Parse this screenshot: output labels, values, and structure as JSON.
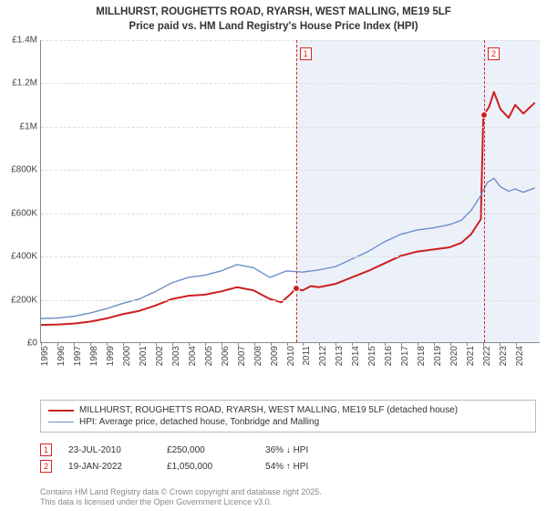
{
  "title_line1": "MILLHURST, ROUGHETTS ROAD, RYARSH, WEST MALLING, ME19 5LF",
  "title_line2": "Price paid vs. HM Land Registry's House Price Index (HPI)",
  "chart": {
    "type": "line",
    "background_color": "#ffffff",
    "shade_color": "#eaf0f8",
    "grid_color": "#dddddd",
    "axis_color": "#888888",
    "x_start": 1995,
    "x_end": 2025.5,
    "xticks": [
      1995,
      1996,
      1997,
      1998,
      1999,
      2000,
      2001,
      2002,
      2003,
      2004,
      2005,
      2006,
      2007,
      2008,
      2009,
      2010,
      2011,
      2012,
      2013,
      2014,
      2015,
      2016,
      2017,
      2018,
      2019,
      2020,
      2021,
      2022,
      2023,
      2024
    ],
    "y_min": 0,
    "y_max": 1400000,
    "yticks": [
      0,
      200000,
      400000,
      600000,
      800000,
      1000000,
      1200000,
      1400000
    ],
    "yticklabels": [
      "£0",
      "£200K",
      "£400K",
      "£600K",
      "£800K",
      "£1M",
      "£1.2M",
      "£1.4M"
    ],
    "xtick_label_fontsize": 10,
    "ytick_label_fontsize": 10,
    "xtick_rotation_deg": -90,
    "shade_from_year": 2010.56,
    "series": [
      {
        "key": "property",
        "color": "#cc1f1f",
        "width": 2,
        "points": [
          [
            1995,
            80000
          ],
          [
            1996,
            82000
          ],
          [
            1997,
            86000
          ],
          [
            1998,
            95000
          ],
          [
            1999,
            110000
          ],
          [
            2000,
            130000
          ],
          [
            2001,
            145000
          ],
          [
            2002,
            170000
          ],
          [
            2003,
            200000
          ],
          [
            2004,
            215000
          ],
          [
            2005,
            220000
          ],
          [
            2006,
            235000
          ],
          [
            2007,
            255000
          ],
          [
            2008,
            240000
          ],
          [
            2009,
            200000
          ],
          [
            2009.7,
            185000
          ],
          [
            2010.3,
            225000
          ],
          [
            2010.56,
            250000
          ],
          [
            2011,
            240000
          ],
          [
            2011.5,
            260000
          ],
          [
            2012,
            255000
          ],
          [
            2013,
            270000
          ],
          [
            2014,
            300000
          ],
          [
            2015,
            330000
          ],
          [
            2016,
            365000
          ],
          [
            2017,
            400000
          ],
          [
            2018,
            420000
          ],
          [
            2019,
            430000
          ],
          [
            2020,
            440000
          ],
          [
            2020.7,
            460000
          ],
          [
            2021.3,
            500000
          ],
          [
            2021.9,
            570000
          ],
          [
            2022.05,
            1050000
          ],
          [
            2022.4,
            1090000
          ],
          [
            2022.7,
            1160000
          ],
          [
            2023.1,
            1080000
          ],
          [
            2023.6,
            1040000
          ],
          [
            2024.0,
            1100000
          ],
          [
            2024.5,
            1060000
          ],
          [
            2025.2,
            1110000
          ]
        ]
      },
      {
        "key": "hpi",
        "color": "#6d8fc9",
        "width": 1.4,
        "points": [
          [
            1995,
            110000
          ],
          [
            1996,
            112000
          ],
          [
            1997,
            120000
          ],
          [
            1998,
            135000
          ],
          [
            1999,
            155000
          ],
          [
            2000,
            180000
          ],
          [
            2001,
            200000
          ],
          [
            2002,
            235000
          ],
          [
            2003,
            275000
          ],
          [
            2004,
            300000
          ],
          [
            2005,
            310000
          ],
          [
            2006,
            330000
          ],
          [
            2007,
            360000
          ],
          [
            2008,
            345000
          ],
          [
            2009,
            300000
          ],
          [
            2010,
            330000
          ],
          [
            2011,
            325000
          ],
          [
            2012,
            335000
          ],
          [
            2013,
            350000
          ],
          [
            2014,
            385000
          ],
          [
            2015,
            420000
          ],
          [
            2016,
            465000
          ],
          [
            2017,
            500000
          ],
          [
            2018,
            520000
          ],
          [
            2019,
            530000
          ],
          [
            2020,
            545000
          ],
          [
            2020.7,
            565000
          ],
          [
            2021.3,
            610000
          ],
          [
            2021.9,
            680000
          ],
          [
            2022.3,
            740000
          ],
          [
            2022.7,
            760000
          ],
          [
            2023.1,
            720000
          ],
          [
            2023.6,
            700000
          ],
          [
            2024.0,
            710000
          ],
          [
            2024.5,
            695000
          ],
          [
            2025.2,
            715000
          ]
        ]
      }
    ],
    "sale_markers": [
      {
        "n": "1",
        "year": 2010.56,
        "price": 250000
      },
      {
        "n": "2",
        "year": 2022.05,
        "price": 1050000
      }
    ],
    "sale_point_color": "#cc1f1f",
    "sale_point_border": "#ffffff",
    "marker_badge_border": "#d22",
    "marker_badge_text_color": "#d22"
  },
  "legend": {
    "items": [
      {
        "color": "#cc1f1f",
        "width": 2,
        "label": "MILLHURST, ROUGHETTS ROAD, RYARSH, WEST MALLING, ME19 5LF (detached house)"
      },
      {
        "color": "#6d8fc9",
        "width": 1.4,
        "label": "HPI: Average price, detached house, Tonbridge and Malling"
      }
    ]
  },
  "marker_table": {
    "rows": [
      {
        "n": "1",
        "date": "23-JUL-2010",
        "price": "£250,000",
        "delta": "36% ↓ HPI"
      },
      {
        "n": "2",
        "date": "19-JAN-2022",
        "price": "£1,050,000",
        "delta": "54% ↑ HPI"
      }
    ]
  },
  "credit_line1": "Contains HM Land Registry data © Crown copyright and database right 2025.",
  "credit_line2": "This data is licensed under the Open Government Licence v3.0."
}
